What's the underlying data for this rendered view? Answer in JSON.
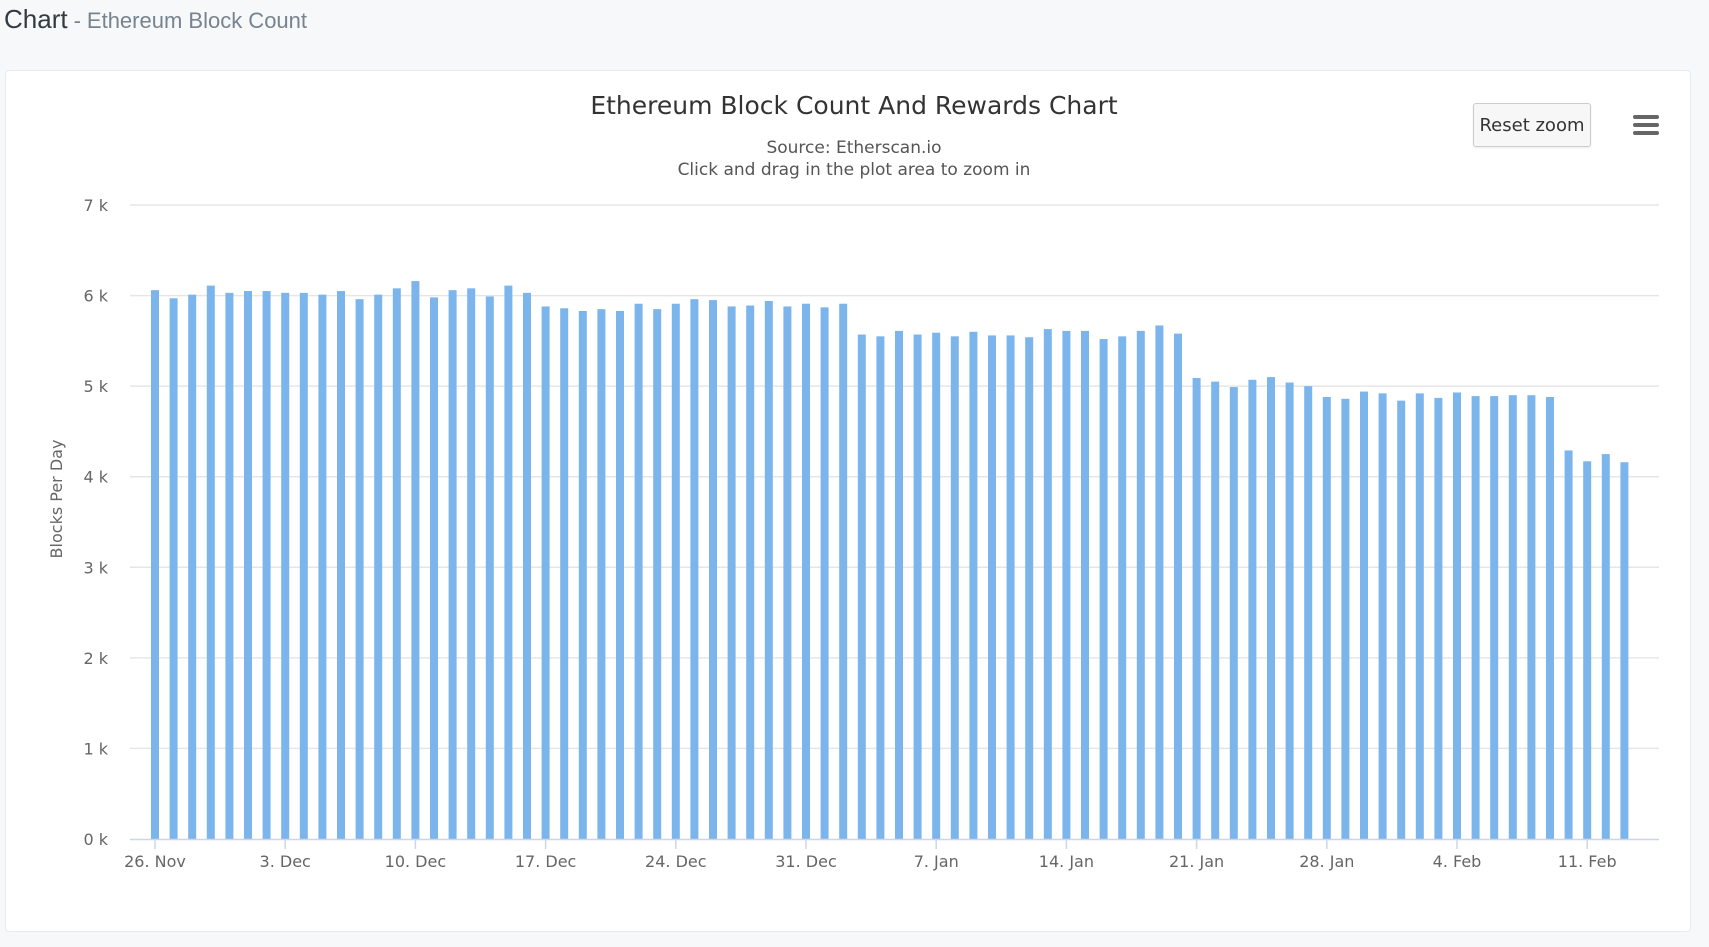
{
  "header": {
    "title": "Chart",
    "separator": "-",
    "subtitle": "Ethereum Block Count"
  },
  "toolbar": {
    "reset_zoom_label": "Reset zoom",
    "menu_icon": "hamburger-menu-icon"
  },
  "colors": {
    "bar": "#7cb5ec",
    "grid": "#e6e6e6",
    "axis": "#ccd6eb",
    "text": "#333333",
    "label": "#666666"
  },
  "chart_data": {
    "type": "bar",
    "title": "Ethereum Block Count And Rewards Chart",
    "subtitle": "Source: Etherscan.io",
    "subtitle2": "Click and drag in the plot area to zoom in",
    "xlabel": "",
    "ylabel": "Blocks Per Day",
    "ylim": [
      0,
      7000
    ],
    "yticks": [
      0,
      1000,
      2000,
      3000,
      4000,
      5000,
      6000,
      7000
    ],
    "ytick_labels": [
      "0 k",
      "1 k",
      "2 k",
      "3 k",
      "4 k",
      "5 k",
      "6 k",
      "7 k"
    ],
    "x_start": "2017-11-26",
    "xtick_labels": [
      "26. Nov",
      "3. Dec",
      "10. Dec",
      "17. Dec",
      "24. Dec",
      "31. Dec",
      "7. Jan",
      "14. Jan",
      "21. Jan",
      "28. Jan",
      "4. Feb",
      "11. Feb"
    ],
    "grid": true,
    "legend": "none",
    "values": [
      6060,
      5970,
      6010,
      6110,
      6030,
      6050,
      6050,
      6030,
      6030,
      6010,
      6050,
      5960,
      6010,
      6080,
      6160,
      5980,
      6060,
      6080,
      5990,
      6110,
      6030,
      5880,
      5860,
      5830,
      5850,
      5830,
      5910,
      5850,
      5910,
      5960,
      5950,
      5880,
      5890,
      5940,
      5880,
      5910,
      5870,
      5910,
      5570,
      5550,
      5610,
      5570,
      5590,
      5550,
      5600,
      5560,
      5560,
      5540,
      5630,
      5610,
      5610,
      5520,
      5550,
      5610,
      5670,
      5580,
      5090,
      5050,
      4990,
      5070,
      5100,
      5040,
      5000,
      4880,
      4860,
      4940,
      4920,
      4840,
      4920,
      4870,
      4930,
      4890,
      4890,
      4900,
      4900,
      4880,
      4290,
      4170,
      4250,
      4160
    ]
  }
}
